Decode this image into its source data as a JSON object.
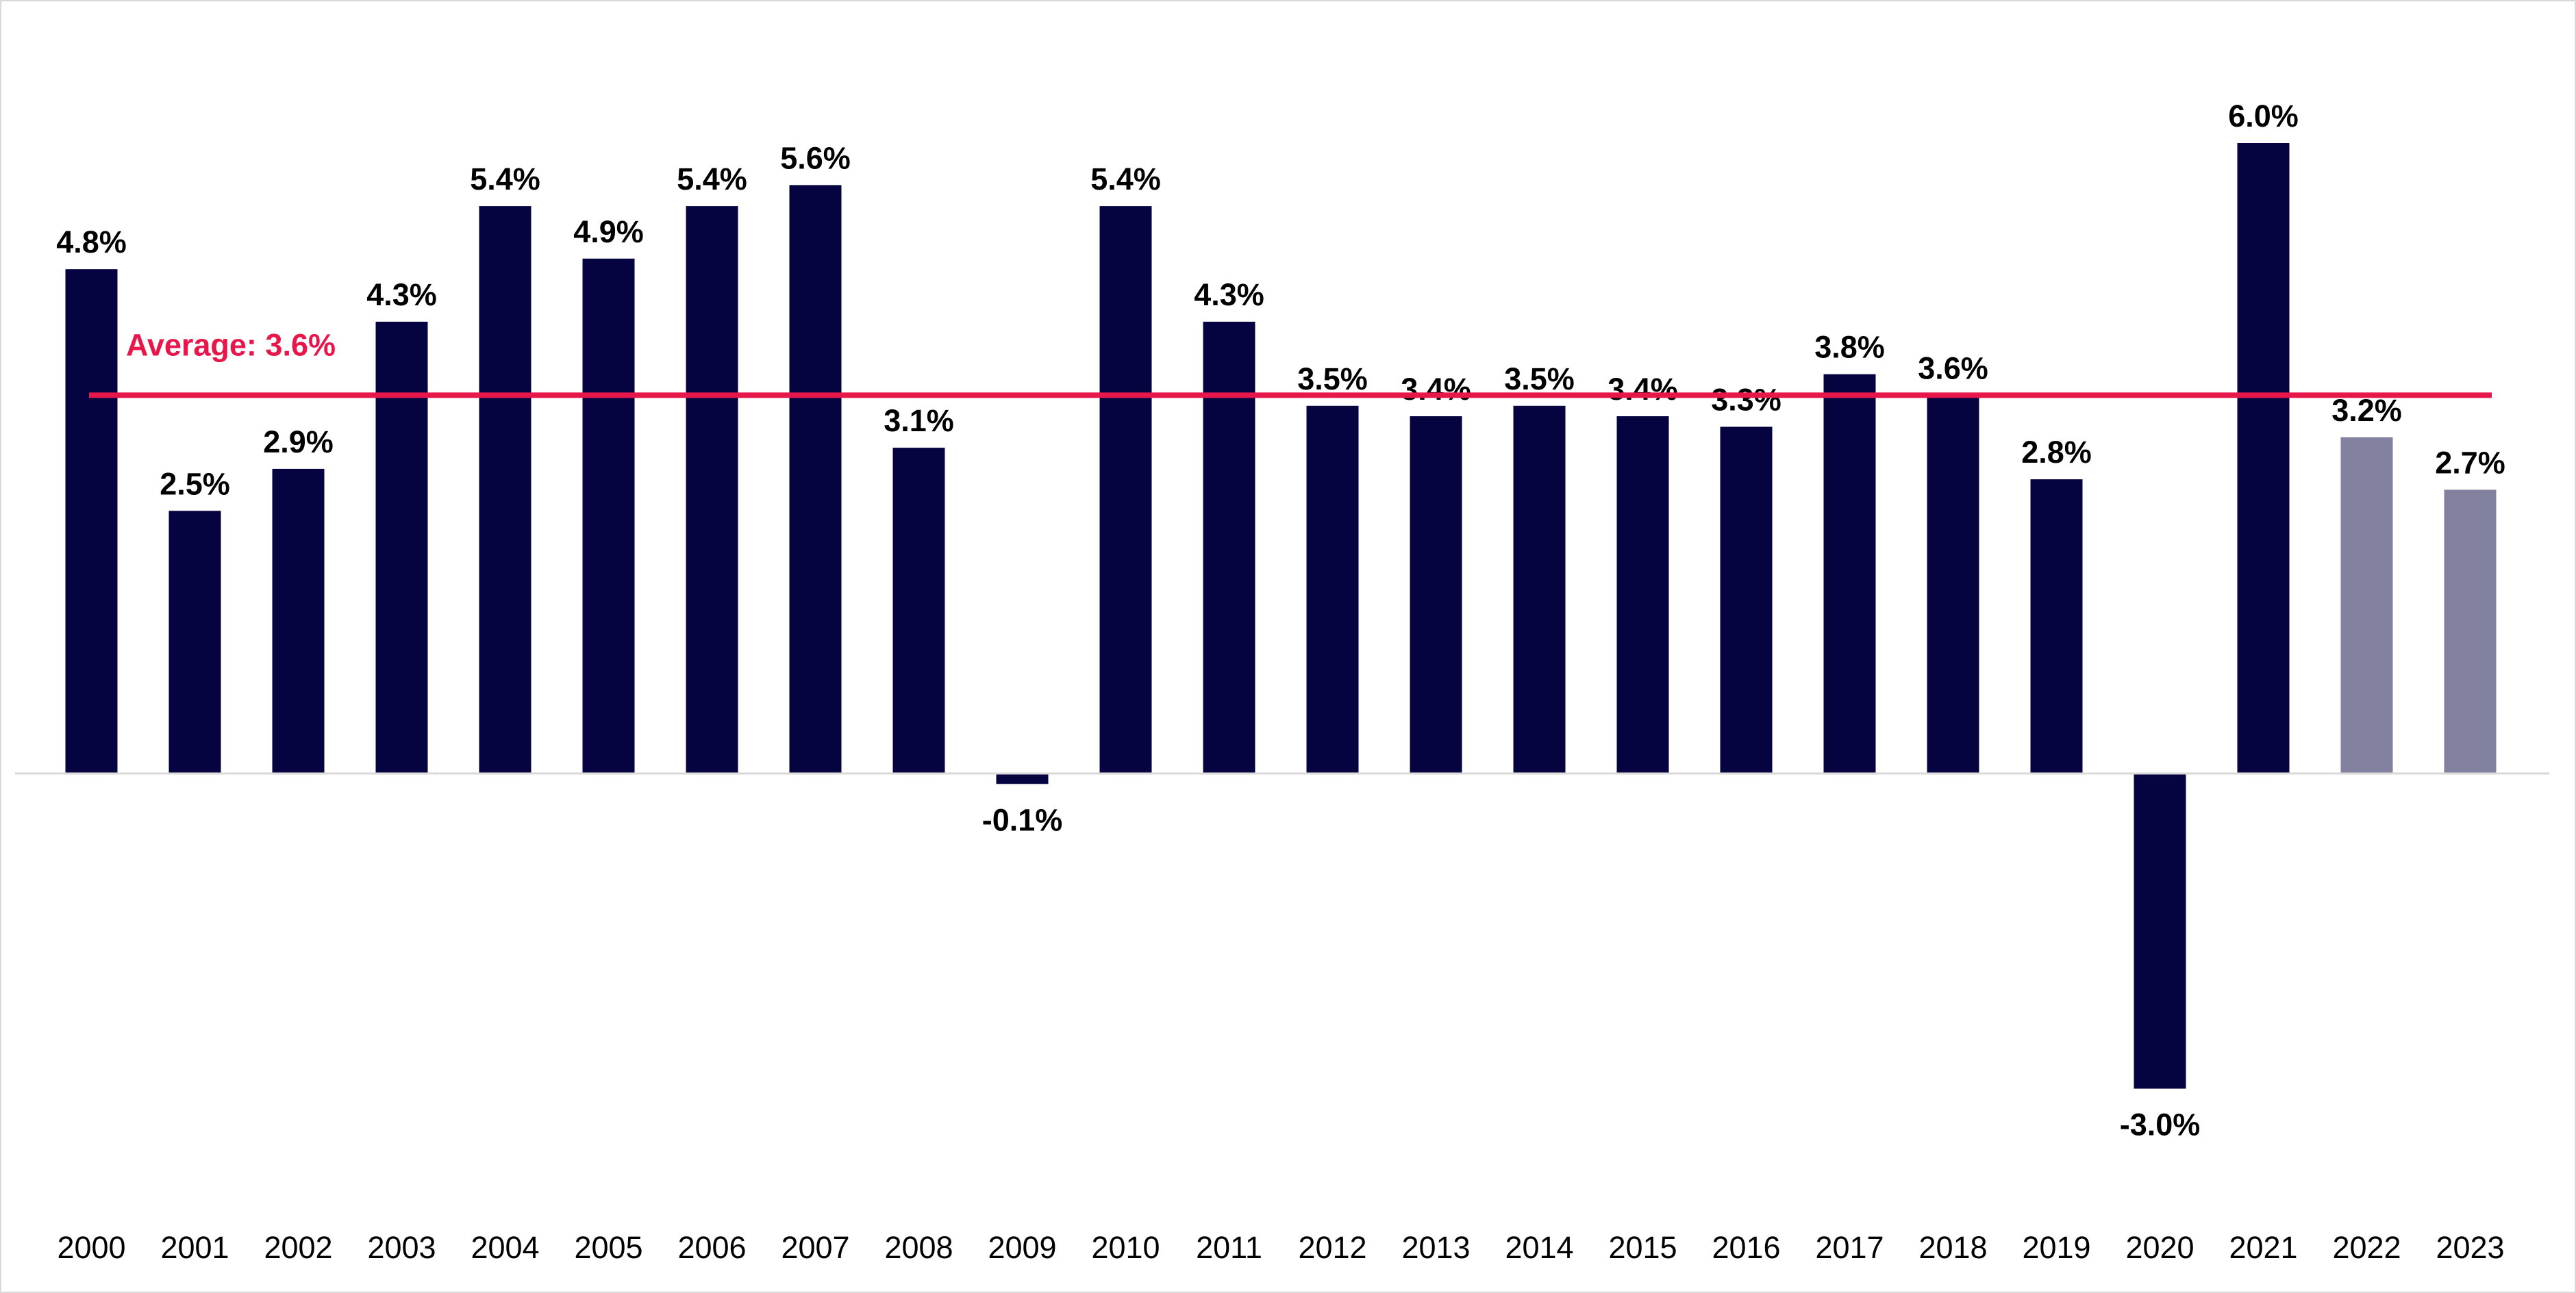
{
  "chart_data": {
    "type": "bar",
    "title": "",
    "xlabel": "",
    "ylabel": "",
    "ylim": [
      -4.0,
      7.5
    ],
    "grid": false,
    "legend": "none",
    "categories": [
      "2000",
      "2001",
      "2002",
      "2003",
      "2004",
      "2005",
      "2006",
      "2007",
      "2008",
      "2009",
      "2010",
      "2011",
      "2012",
      "2013",
      "2014",
      "2015",
      "2016",
      "2017",
      "2018",
      "2019",
      "2020",
      "2021",
      "2022",
      "2023"
    ],
    "values": [
      4.8,
      2.5,
      2.9,
      4.3,
      5.4,
      4.9,
      5.4,
      5.6,
      3.1,
      -0.1,
      5.4,
      4.3,
      3.5,
      3.4,
      3.5,
      3.4,
      3.3,
      3.8,
      3.6,
      2.8,
      -3.0,
      6.0,
      3.2,
      2.7
    ],
    "data_labels": [
      "4.8%",
      "2.5%",
      "2.9%",
      "4.3%",
      "5.4%",
      "4.9%",
      "5.4%",
      "5.6%",
      "3.1%",
      "-0.1%",
      "5.4%",
      "4.3%",
      "3.5%",
      "3.4%",
      "3.5%",
      "3.4%",
      "3.3%",
      "3.8%",
      "3.6%",
      "2.8%",
      "-3.0%",
      "6.0%",
      "3.2%",
      "2.7%"
    ],
    "bar_fill": [
      "#050340",
      "#050340",
      "#050340",
      "#050340",
      "#050340",
      "#050340",
      "#050340",
      "#050340",
      "#050340",
      "#050340",
      "#050340",
      "#050340",
      "#050340",
      "#050340",
      "#050340",
      "#050340",
      "#050340",
      "#050340",
      "#050340",
      "#050340",
      "#050340",
      "#050340",
      "#8281a0",
      "#8281a0"
    ],
    "average": {
      "value": 3.6,
      "label": "Average: 3.6%",
      "color": "#e8174b"
    },
    "axis_color": "#d9d9d9"
  }
}
